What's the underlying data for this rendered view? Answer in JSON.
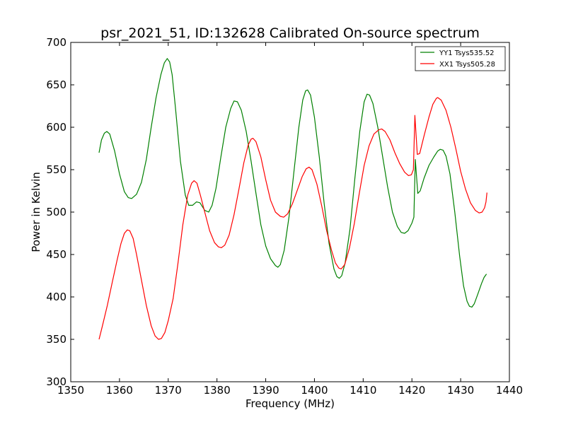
{
  "chart_data": {
    "type": "line",
    "title": "psr_2021_51, ID:132628 Calibrated On-source spectrum",
    "xlabel": "Frequency (MHz)",
    "ylabel": "Power in Kelvin",
    "xlim": [
      1350,
      1440
    ],
    "ylim": [
      300,
      700
    ],
    "xticks": [
      "1350",
      "1360",
      "1370",
      "1380",
      "1390",
      "1400",
      "1410",
      "1420",
      "1430",
      "1440"
    ],
    "yticks": [
      "300",
      "350",
      "400",
      "450",
      "500",
      "550",
      "600",
      "650",
      "700"
    ],
    "grid": false,
    "legend_position": "top-right",
    "series": [
      {
        "name": "YY1 Tsys535.52",
        "color": "#008000",
        "points": [
          [
            1355.8,
            570
          ],
          [
            1356.3,
            585
          ],
          [
            1356.9,
            593
          ],
          [
            1357.4,
            595
          ],
          [
            1358,
            592
          ],
          [
            1359,
            572
          ],
          [
            1360,
            545
          ],
          [
            1361,
            524
          ],
          [
            1361.8,
            517
          ],
          [
            1362.5,
            516
          ],
          [
            1363.5,
            521
          ],
          [
            1364.5,
            535
          ],
          [
            1365.5,
            562
          ],
          [
            1366.5,
            600
          ],
          [
            1367.5,
            635
          ],
          [
            1368.5,
            662
          ],
          [
            1369.2,
            676
          ],
          [
            1369.8,
            681
          ],
          [
            1370.3,
            677
          ],
          [
            1370.8,
            662
          ],
          [
            1371.5,
            622
          ],
          [
            1372.5,
            560
          ],
          [
            1373.5,
            520
          ],
          [
            1374.2,
            508
          ],
          [
            1375,
            508
          ],
          [
            1375.8,
            512
          ],
          [
            1376.5,
            511
          ],
          [
            1377.5,
            502
          ],
          [
            1378.3,
            500
          ],
          [
            1379,
            508
          ],
          [
            1379.8,
            528
          ],
          [
            1380.8,
            565
          ],
          [
            1381.8,
            600
          ],
          [
            1382.8,
            622
          ],
          [
            1383.5,
            631
          ],
          [
            1384.2,
            630
          ],
          [
            1385,
            620
          ],
          [
            1386,
            595
          ],
          [
            1387,
            560
          ],
          [
            1388,
            522
          ],
          [
            1389,
            485
          ],
          [
            1390,
            460
          ],
          [
            1391,
            445
          ],
          [
            1392,
            437
          ],
          [
            1392.5,
            435
          ],
          [
            1393,
            438
          ],
          [
            1393.8,
            455
          ],
          [
            1394.8,
            495
          ],
          [
            1395.8,
            548
          ],
          [
            1396.8,
            600
          ],
          [
            1397.6,
            632
          ],
          [
            1398.2,
            643
          ],
          [
            1398.6,
            644
          ],
          [
            1399.2,
            638
          ],
          [
            1400,
            612
          ],
          [
            1401,
            565
          ],
          [
            1402,
            510
          ],
          [
            1403,
            463
          ],
          [
            1404,
            433
          ],
          [
            1404.6,
            424
          ],
          [
            1405.1,
            422
          ],
          [
            1405.6,
            425
          ],
          [
            1406.3,
            440
          ],
          [
            1407.3,
            480
          ],
          [
            1408.3,
            540
          ],
          [
            1409.3,
            595
          ],
          [
            1410.2,
            630
          ],
          [
            1410.8,
            639
          ],
          [
            1411.3,
            638
          ],
          [
            1412,
            628
          ],
          [
            1413,
            600
          ],
          [
            1414,
            565
          ],
          [
            1415,
            530
          ],
          [
            1416,
            500
          ],
          [
            1417,
            483
          ],
          [
            1417.8,
            476
          ],
          [
            1418.5,
            475
          ],
          [
            1419.2,
            478
          ],
          [
            1420,
            487
          ],
          [
            1420.4,
            494
          ],
          [
            1420.7,
            562
          ],
          [
            1421.2,
            522
          ],
          [
            1421.7,
            525
          ],
          [
            1422.5,
            540
          ],
          [
            1423.5,
            555
          ],
          [
            1424.5,
            565
          ],
          [
            1425.3,
            572
          ],
          [
            1425.8,
            574
          ],
          [
            1426.4,
            573
          ],
          [
            1427,
            566
          ],
          [
            1427.8,
            545
          ],
          [
            1428.8,
            500
          ],
          [
            1429.8,
            448
          ],
          [
            1430.6,
            413
          ],
          [
            1431.3,
            395
          ],
          [
            1431.8,
            389
          ],
          [
            1432.3,
            388
          ],
          [
            1432.8,
            392
          ],
          [
            1433.5,
            403
          ],
          [
            1434.3,
            416
          ],
          [
            1434.8,
            423
          ],
          [
            1435.3,
            427
          ]
        ]
      },
      {
        "name": "XX1 Tsys505.28",
        "color": "#ff0000",
        "points": [
          [
            1355.8,
            350
          ],
          [
            1356.5,
            366
          ],
          [
            1357.5,
            390
          ],
          [
            1358.5,
            417
          ],
          [
            1359.5,
            443
          ],
          [
            1360.3,
            463
          ],
          [
            1361,
            475
          ],
          [
            1361.6,
            479
          ],
          [
            1362.1,
            478
          ],
          [
            1362.8,
            469
          ],
          [
            1363.5,
            450
          ],
          [
            1364.5,
            420
          ],
          [
            1365.5,
            390
          ],
          [
            1366.5,
            366
          ],
          [
            1367.3,
            354
          ],
          [
            1368,
            350
          ],
          [
            1368.6,
            351
          ],
          [
            1369.3,
            358
          ],
          [
            1370,
            372
          ],
          [
            1371,
            398
          ],
          [
            1372,
            440
          ],
          [
            1373,
            485
          ],
          [
            1374,
            520
          ],
          [
            1374.8,
            534
          ],
          [
            1375.3,
            537
          ],
          [
            1375.9,
            534
          ],
          [
            1376.6,
            520
          ],
          [
            1377.5,
            500
          ],
          [
            1378.5,
            478
          ],
          [
            1379.5,
            464
          ],
          [
            1380.3,
            459
          ],
          [
            1380.9,
            458
          ],
          [
            1381.6,
            461
          ],
          [
            1382.5,
            473
          ],
          [
            1383.5,
            497
          ],
          [
            1384.5,
            527
          ],
          [
            1385.5,
            558
          ],
          [
            1386.4,
            579
          ],
          [
            1387,
            586
          ],
          [
            1387.4,
            587
          ],
          [
            1388,
            583
          ],
          [
            1389,
            565
          ],
          [
            1390,
            538
          ],
          [
            1391,
            514
          ],
          [
            1392,
            500
          ],
          [
            1393,
            495
          ],
          [
            1393.7,
            494
          ],
          [
            1394.5,
            498
          ],
          [
            1395.5,
            510
          ],
          [
            1396.5,
            526
          ],
          [
            1397.5,
            542
          ],
          [
            1398.3,
            551
          ],
          [
            1398.9,
            553
          ],
          [
            1399.5,
            550
          ],
          [
            1400.5,
            533
          ],
          [
            1401.5,
            507
          ],
          [
            1402.5,
            478
          ],
          [
            1403.5,
            455
          ],
          [
            1404.3,
            440
          ],
          [
            1405,
            434
          ],
          [
            1405.5,
            433
          ],
          [
            1406.2,
            438
          ],
          [
            1407.2,
            458
          ],
          [
            1408.2,
            487
          ],
          [
            1409.2,
            522
          ],
          [
            1410.2,
            555
          ],
          [
            1411.2,
            578
          ],
          [
            1412.2,
            592
          ],
          [
            1413.2,
            597
          ],
          [
            1413.8,
            598
          ],
          [
            1414.5,
            595
          ],
          [
            1415.5,
            585
          ],
          [
            1416.5,
            570
          ],
          [
            1417.5,
            557
          ],
          [
            1418.5,
            547
          ],
          [
            1419.3,
            543
          ],
          [
            1419.9,
            544
          ],
          [
            1420.3,
            550
          ],
          [
            1420.6,
            614
          ],
          [
            1421.1,
            568
          ],
          [
            1421.6,
            569
          ],
          [
            1422.5,
            590
          ],
          [
            1423.5,
            612
          ],
          [
            1424.3,
            627
          ],
          [
            1425,
            634
          ],
          [
            1425.3,
            635
          ],
          [
            1426,
            632
          ],
          [
            1427,
            620
          ],
          [
            1428,
            600
          ],
          [
            1429,
            575
          ],
          [
            1430,
            548
          ],
          [
            1431,
            527
          ],
          [
            1432,
            511
          ],
          [
            1433,
            502
          ],
          [
            1433.8,
            499
          ],
          [
            1434.4,
            500
          ],
          [
            1434.9,
            505
          ],
          [
            1435.2,
            512
          ],
          [
            1435.4,
            523
          ]
        ]
      }
    ]
  }
}
